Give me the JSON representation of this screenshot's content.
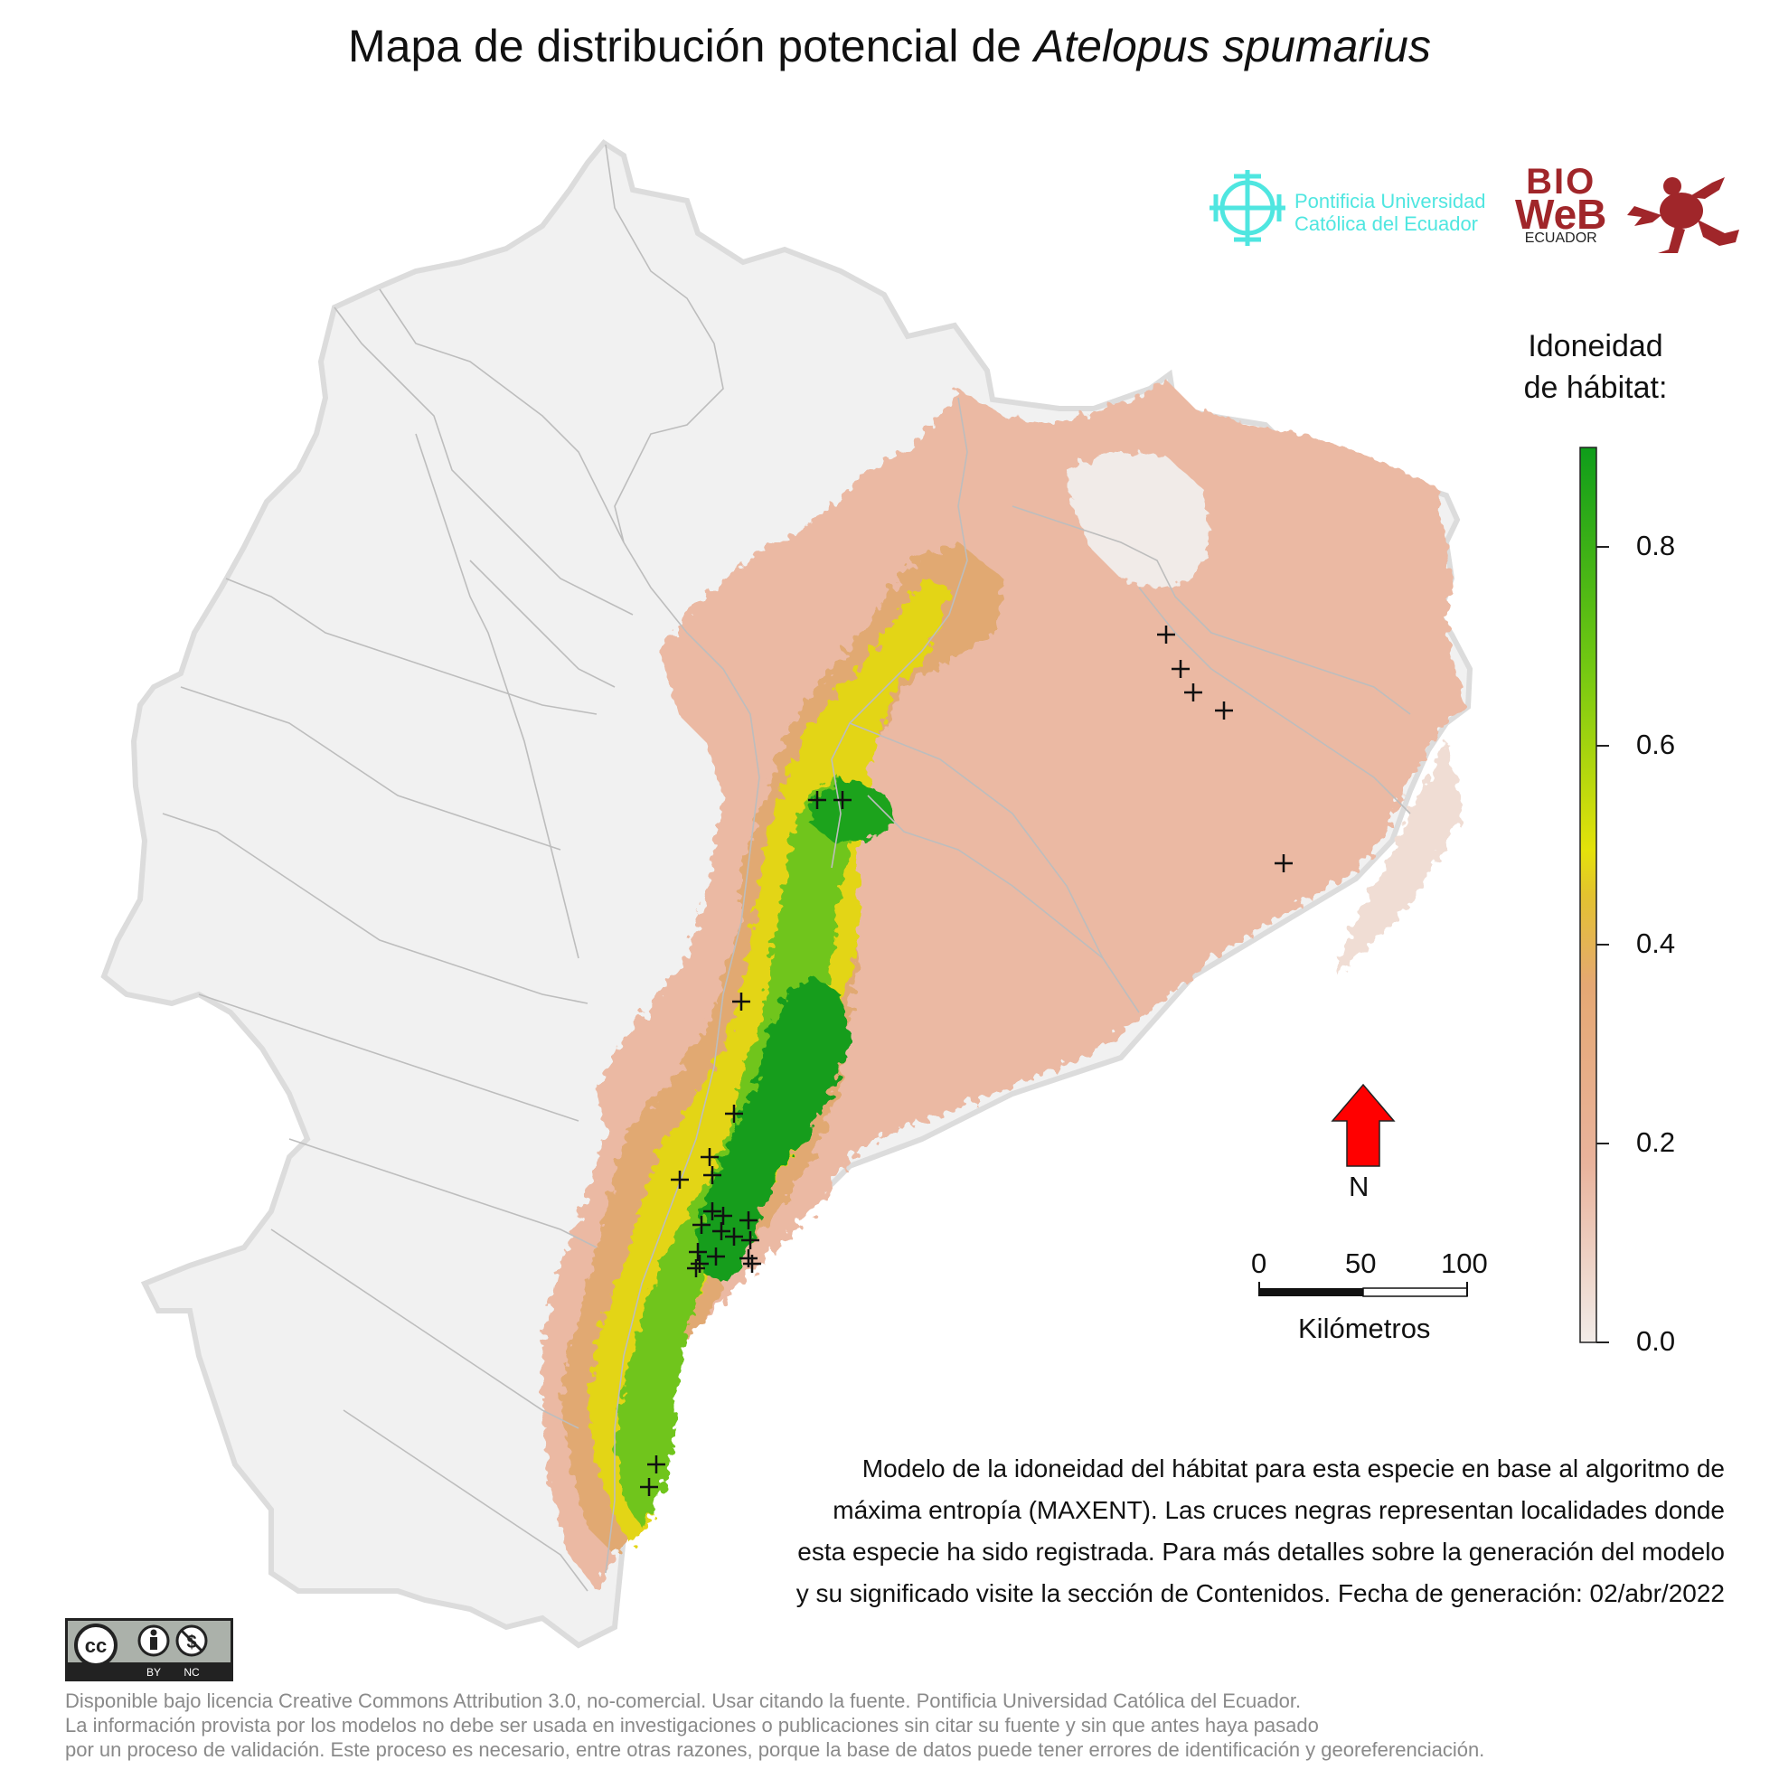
{
  "title": {
    "prefix": "Mapa de distribución potencial de",
    "species": "Atelopus spumarius"
  },
  "legend": {
    "title_line1": "Idoneidad",
    "title_line2": "de hábitat:",
    "ticks": [
      "0.0",
      "0.2",
      "0.4",
      "0.6",
      "0.8"
    ],
    "tick_values": [
      0.0,
      0.2,
      0.4,
      0.6,
      0.8
    ],
    "range": [
      0.0,
      0.9
    ],
    "colors": [
      "#f2ece8",
      "#e8a98a",
      "#e3b24a",
      "#e4e20a",
      "#66c615",
      "#119e1a"
    ]
  },
  "scalebar": {
    "labels": [
      "0",
      "50",
      "100"
    ],
    "unit": "Kilómetros"
  },
  "north": {
    "label": "N",
    "color": "#ff0000"
  },
  "description": [
    "Modelo de la idoneidad del hábitat para esta especie en base al algoritmo de",
    "máxima entropía (MAXENT). Las cruces negras representan localidades donde",
    "esta especie ha sido registrada. Para más detalles sobre la generación del modelo",
    "y su significado visite la sección de Contenidos. Fecha de generación: 02/abr/2022"
  ],
  "license": [
    "Disponible bajo licencia Creative Commons Attribution 3.0, no-comercial. Usar citando la fuente. Pontificia Universidad Católica del Ecuador.",
    "La información provista por los modelos no debe ser usada en investigaciones o publicaciones sin citar su fuente y sin que antes haya pasado",
    "por un proceso de validación. Este proceso es necesario, entre otras razones, porque la base de datos puede tener errores de identificación y georeferenciación."
  ],
  "logos": {
    "puce_line1": "Pontificia Universidad",
    "puce_line2": "Católica del Ecuador",
    "bioweb_line1": "BIO",
    "bioweb_line2": "WeB",
    "bioweb_line3": "ECUADOR",
    "cc_by": "BY",
    "cc_nc": "NC",
    "cc_mark": "cc"
  }
}
